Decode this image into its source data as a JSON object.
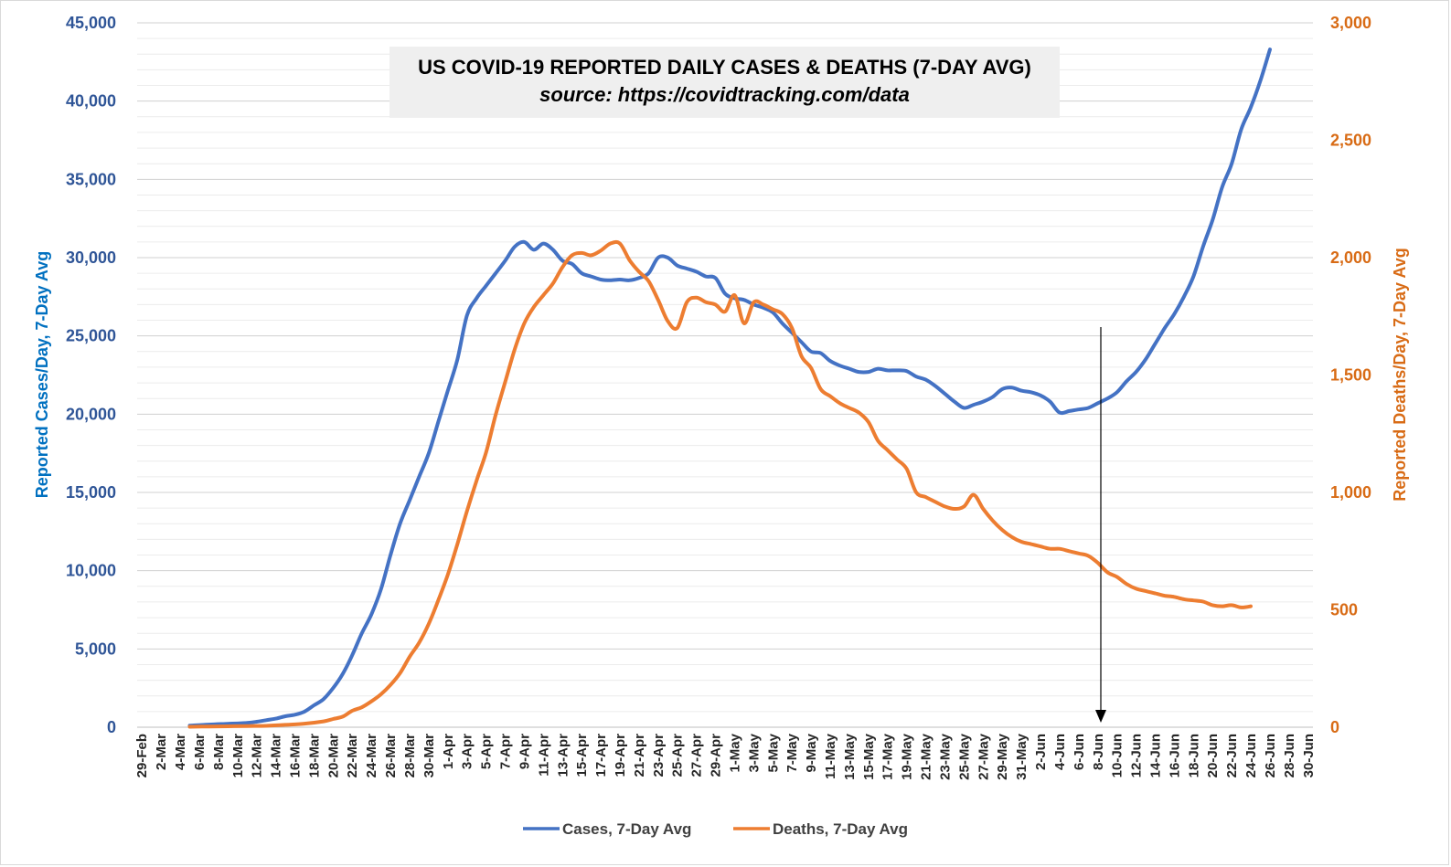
{
  "chart_data": {
    "type": "line",
    "title": "US COVID-19 REPORTED DAILY CASES & DEATHS (7-DAY AVG)",
    "subtitle": "source: https://covidtracking.com/data",
    "ylabel_left": "Reported Cases/Day, 7-Day Avg",
    "ylabel_right": "Reported Deaths/Day, 7-Day Avg",
    "xlabel": "",
    "y_left_lim": [
      0,
      45000
    ],
    "y_right_lim": [
      0,
      3000
    ],
    "y_left_ticks": [
      "0",
      "5,000",
      "10,000",
      "15,000",
      "20,000",
      "25,000",
      "30,000",
      "35,000",
      "40,000",
      "45,000"
    ],
    "y_right_ticks": [
      "0",
      "500",
      "1,000",
      "1,500",
      "2,000",
      "2,500",
      "3,000"
    ],
    "x_ticks": [
      "29-Feb",
      "2-Mar",
      "4-Mar",
      "6-Mar",
      "8-Mar",
      "10-Mar",
      "12-Mar",
      "14-Mar",
      "16-Mar",
      "18-Mar",
      "20-Mar",
      "22-Mar",
      "24-Mar",
      "26-Mar",
      "28-Mar",
      "30-Mar",
      "1-Apr",
      "3-Apr",
      "5-Apr",
      "7-Apr",
      "9-Apr",
      "11-Apr",
      "13-Apr",
      "15-Apr",
      "17-Apr",
      "19-Apr",
      "21-Apr",
      "23-Apr",
      "25-Apr",
      "27-Apr",
      "29-Apr",
      "1-May",
      "3-May",
      "5-May",
      "7-May",
      "9-May",
      "11-May",
      "13-May",
      "15-May",
      "17-May",
      "19-May",
      "21-May",
      "23-May",
      "25-May",
      "27-May",
      "29-May",
      "31-May",
      "2-Jun",
      "4-Jun",
      "6-Jun",
      "8-Jun",
      "10-Jun",
      "12-Jun",
      "14-Jun",
      "16-Jun",
      "18-Jun",
      "20-Jun",
      "22-Jun",
      "24-Jun",
      "26-Jun",
      "28-Jun",
      "30-Jun"
    ],
    "grid": true,
    "legend_position": "bottom",
    "annotation": "downward arrow marking 9-Jun",
    "series": [
      {
        "name": "Cases, 7-Day Avg",
        "axis": "left",
        "color": "#4472c4",
        "points": [
          [
            5,
            100
          ],
          [
            7,
            170
          ],
          [
            9,
            220
          ],
          [
            11,
            280
          ],
          [
            12,
            350
          ],
          [
            13,
            450
          ],
          [
            14,
            550
          ],
          [
            15,
            700
          ],
          [
            16,
            800
          ],
          [
            17,
            1000
          ],
          [
            18,
            1400
          ],
          [
            19,
            1800
          ],
          [
            20,
            2500
          ],
          [
            21,
            3400
          ],
          [
            22,
            4600
          ],
          [
            23,
            6000
          ],
          [
            24,
            7200
          ],
          [
            25,
            8800
          ],
          [
            26,
            11000
          ],
          [
            27,
            13000
          ],
          [
            28,
            14500
          ],
          [
            29,
            16000
          ],
          [
            30,
            17500
          ],
          [
            31,
            19500
          ],
          [
            32,
            21500
          ],
          [
            33,
            23500
          ],
          [
            34,
            26300
          ],
          [
            35,
            27400
          ],
          [
            36,
            28200
          ],
          [
            37,
            29000
          ],
          [
            38,
            29800
          ],
          [
            39,
            30700
          ],
          [
            40,
            31000
          ],
          [
            41,
            30500
          ],
          [
            42,
            30900
          ],
          [
            43,
            30500
          ],
          [
            44,
            29800
          ],
          [
            45,
            29600
          ],
          [
            46,
            29000
          ],
          [
            47,
            28800
          ],
          [
            48,
            28600
          ],
          [
            49,
            28550
          ],
          [
            50,
            28600
          ],
          [
            51,
            28550
          ],
          [
            52,
            28700
          ],
          [
            53,
            29000
          ],
          [
            54,
            30000
          ],
          [
            55,
            30000
          ],
          [
            56,
            29500
          ],
          [
            57,
            29300
          ],
          [
            58,
            29100
          ],
          [
            59,
            28800
          ],
          [
            60,
            28700
          ],
          [
            61,
            27700
          ],
          [
            62,
            27400
          ],
          [
            63,
            27300
          ],
          [
            64,
            27000
          ],
          [
            65,
            26800
          ],
          [
            66,
            26500
          ],
          [
            67,
            25800
          ],
          [
            68,
            25200
          ],
          [
            69,
            24600
          ],
          [
            70,
            24000
          ],
          [
            71,
            23900
          ],
          [
            72,
            23400
          ],
          [
            73,
            23100
          ],
          [
            74,
            22900
          ],
          [
            75,
            22700
          ],
          [
            76,
            22700
          ],
          [
            77,
            22900
          ],
          [
            78,
            22800
          ],
          [
            79,
            22800
          ],
          [
            80,
            22750
          ],
          [
            81,
            22400
          ],
          [
            82,
            22200
          ],
          [
            83,
            21800
          ],
          [
            84,
            21300
          ],
          [
            85,
            20800
          ],
          [
            86,
            20400
          ],
          [
            87,
            20600
          ],
          [
            88,
            20800
          ],
          [
            89,
            21100
          ],
          [
            90,
            21600
          ],
          [
            91,
            21700
          ],
          [
            92,
            21500
          ],
          [
            93,
            21400
          ],
          [
            94,
            21200
          ],
          [
            95,
            20800
          ],
          [
            96,
            20100
          ],
          [
            97,
            20200
          ],
          [
            98,
            20300
          ],
          [
            99,
            20400
          ],
          [
            100,
            20700
          ],
          [
            101,
            21000
          ],
          [
            102,
            21400
          ],
          [
            103,
            22100
          ],
          [
            104,
            22700
          ],
          [
            105,
            23500
          ],
          [
            106,
            24500
          ],
          [
            107,
            25500
          ],
          [
            108,
            26400
          ],
          [
            109,
            27500
          ],
          [
            110,
            28800
          ],
          [
            111,
            30700
          ],
          [
            112,
            32400
          ],
          [
            113,
            34500
          ],
          [
            114,
            36000
          ],
          [
            115,
            38200
          ],
          [
            116,
            39600
          ],
          [
            117,
            41300
          ],
          [
            118,
            43300
          ]
        ]
      },
      {
        "name": "Deaths, 7-Day Avg",
        "axis": "right",
        "color": "#ed7d31",
        "points": [
          [
            5,
            2
          ],
          [
            7,
            3
          ],
          [
            9,
            4
          ],
          [
            11,
            5
          ],
          [
            13,
            6
          ],
          [
            15,
            10
          ],
          [
            17,
            15
          ],
          [
            19,
            25
          ],
          [
            20,
            35
          ],
          [
            21,
            45
          ],
          [
            22,
            70
          ],
          [
            23,
            85
          ],
          [
            24,
            110
          ],
          [
            25,
            140
          ],
          [
            26,
            180
          ],
          [
            27,
            230
          ],
          [
            28,
            300
          ],
          [
            29,
            360
          ],
          [
            30,
            440
          ],
          [
            31,
            540
          ],
          [
            32,
            650
          ],
          [
            33,
            780
          ],
          [
            34,
            920
          ],
          [
            35,
            1050
          ],
          [
            36,
            1170
          ],
          [
            37,
            1330
          ],
          [
            38,
            1470
          ],
          [
            39,
            1610
          ],
          [
            40,
            1720
          ],
          [
            41,
            1790
          ],
          [
            42,
            1840
          ],
          [
            43,
            1890
          ],
          [
            44,
            1960
          ],
          [
            45,
            2010
          ],
          [
            46,
            2020
          ],
          [
            47,
            2010
          ],
          [
            48,
            2030
          ],
          [
            49,
            2060
          ],
          [
            50,
            2060
          ],
          [
            51,
            1990
          ],
          [
            52,
            1940
          ],
          [
            53,
            1900
          ],
          [
            54,
            1820
          ],
          [
            55,
            1730
          ],
          [
            56,
            1700
          ],
          [
            57,
            1810
          ],
          [
            58,
            1830
          ],
          [
            59,
            1810
          ],
          [
            60,
            1800
          ],
          [
            61,
            1770
          ],
          [
            62,
            1840
          ],
          [
            63,
            1720
          ],
          [
            64,
            1810
          ],
          [
            65,
            1800
          ],
          [
            66,
            1780
          ],
          [
            67,
            1760
          ],
          [
            68,
            1700
          ],
          [
            69,
            1580
          ],
          [
            70,
            1530
          ],
          [
            71,
            1440
          ],
          [
            72,
            1410
          ],
          [
            73,
            1380
          ],
          [
            74,
            1360
          ],
          [
            75,
            1340
          ],
          [
            76,
            1300
          ],
          [
            77,
            1220
          ],
          [
            78,
            1180
          ],
          [
            79,
            1140
          ],
          [
            80,
            1100
          ],
          [
            81,
            1000
          ],
          [
            82,
            980
          ],
          [
            83,
            960
          ],
          [
            84,
            940
          ],
          [
            85,
            930
          ],
          [
            86,
            940
          ],
          [
            87,
            990
          ],
          [
            88,
            930
          ],
          [
            89,
            880
          ],
          [
            90,
            840
          ],
          [
            91,
            810
          ],
          [
            92,
            790
          ],
          [
            93,
            780
          ],
          [
            94,
            770
          ],
          [
            95,
            760
          ],
          [
            96,
            760
          ],
          [
            97,
            750
          ],
          [
            98,
            740
          ],
          [
            99,
            730
          ],
          [
            100,
            700
          ],
          [
            101,
            660
          ],
          [
            102,
            640
          ],
          [
            103,
            610
          ],
          [
            104,
            590
          ],
          [
            105,
            580
          ],
          [
            106,
            570
          ],
          [
            107,
            560
          ],
          [
            108,
            555
          ],
          [
            109,
            545
          ],
          [
            110,
            540
          ],
          [
            111,
            535
          ],
          [
            112,
            520
          ],
          [
            113,
            515
          ],
          [
            114,
            520
          ],
          [
            115,
            510
          ],
          [
            116,
            515
          ]
        ]
      }
    ]
  }
}
